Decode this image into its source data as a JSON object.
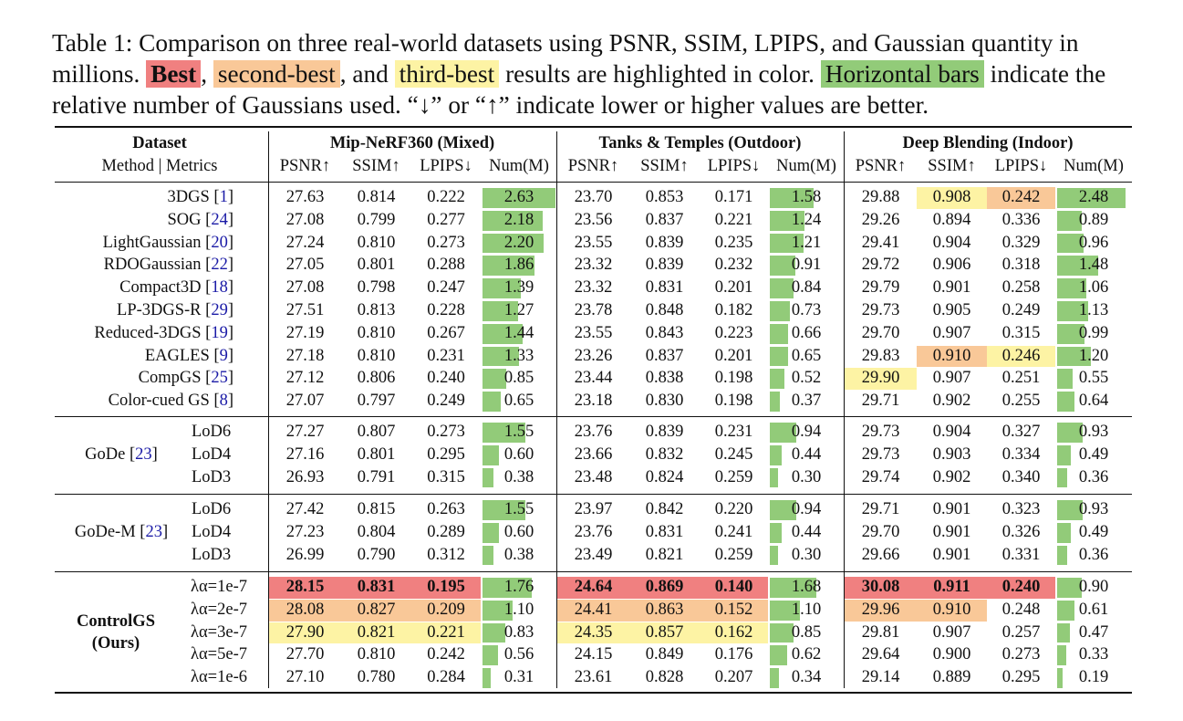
{
  "caption": {
    "text1": "Table 1: Comparison on three real-world datasets using PSNR, SSIM, LPIPS, and Gaussian quantity in millions.",
    "best": "Best",
    "comma1": ",",
    "second": "second-best",
    "and": ", and",
    "third": "third-best",
    "text2": "results are highlighted in color.",
    "bars": "Horizontal bars",
    "text3": "indicate the relative number of Gaussians used. “↓” or “↑” indicate lower or higher values are better."
  },
  "header": {
    "dataset_label": "Dataset",
    "method_label": "Method | Metrics",
    "datasets": [
      "Mip-NeRF360 (Mixed)",
      "Tanks & Temples (Outdoor)",
      "Deep Blending (Indoor)"
    ],
    "metrics": [
      "PSNR↑",
      "SSIM↑",
      "LPIPS↓",
      "Num(M)"
    ]
  },
  "colors": {
    "best": "#f08080",
    "second": "#f9c898",
    "third": "#fdf3a4",
    "bar": "#92cb79"
  },
  "bar_max": 2.63,
  "groups": [
    {
      "label": "",
      "rows": [
        {
          "method": "3DGS",
          "cite": "1",
          "vals": [
            "27.63",
            "0.814",
            "0.222",
            "2.63",
            "23.70",
            "0.853",
            "0.171",
            "1.58",
            "29.88",
            "0.908",
            "0.242",
            "2.48"
          ],
          "hl": {
            "9": "third",
            "10": "second"
          }
        },
        {
          "method": "SOG",
          "cite": "24",
          "vals": [
            "27.08",
            "0.799",
            "0.277",
            "2.18",
            "23.56",
            "0.837",
            "0.221",
            "1.24",
            "29.26",
            "0.894",
            "0.336",
            "0.89"
          ],
          "hl": {}
        },
        {
          "method": "LightGaussian",
          "cite": "20",
          "vals": [
            "27.24",
            "0.810",
            "0.273",
            "2.20",
            "23.55",
            "0.839",
            "0.235",
            "1.21",
            "29.41",
            "0.904",
            "0.329",
            "0.96"
          ],
          "hl": {}
        },
        {
          "method": "RDOGaussian",
          "cite": "22",
          "vals": [
            "27.05",
            "0.801",
            "0.288",
            "1.86",
            "23.32",
            "0.839",
            "0.232",
            "0.91",
            "29.72",
            "0.906",
            "0.318",
            "1.48"
          ],
          "hl": {}
        },
        {
          "method": "Compact3D",
          "cite": "18",
          "vals": [
            "27.08",
            "0.798",
            "0.247",
            "1.39",
            "23.32",
            "0.831",
            "0.201",
            "0.84",
            "29.79",
            "0.901",
            "0.258",
            "1.06"
          ],
          "hl": {}
        },
        {
          "method": "LP-3DGS-R",
          "cite": "29",
          "vals": [
            "27.51",
            "0.813",
            "0.228",
            "1.27",
            "23.78",
            "0.848",
            "0.182",
            "0.73",
            "29.73",
            "0.905",
            "0.249",
            "1.13"
          ],
          "hl": {}
        },
        {
          "method": "Reduced-3DGS",
          "cite": "19",
          "vals": [
            "27.19",
            "0.810",
            "0.267",
            "1.44",
            "23.55",
            "0.843",
            "0.223",
            "0.66",
            "29.70",
            "0.907",
            "0.315",
            "0.99"
          ],
          "hl": {}
        },
        {
          "method": "EAGLES",
          "cite": "9",
          "vals": [
            "27.18",
            "0.810",
            "0.231",
            "1.33",
            "23.26",
            "0.837",
            "0.201",
            "0.65",
            "29.83",
            "0.910",
            "0.246",
            "1.20"
          ],
          "hl": {
            "9": "second",
            "10": "third"
          }
        },
        {
          "method": "CompGS",
          "cite": "25",
          "vals": [
            "27.12",
            "0.806",
            "0.240",
            "0.85",
            "23.44",
            "0.838",
            "0.198",
            "0.52",
            "29.90",
            "0.907",
            "0.251",
            "0.55"
          ],
          "hl": {
            "8": "third"
          }
        },
        {
          "method": "Color-cued GS",
          "cite": "8",
          "vals": [
            "27.07",
            "0.797",
            "0.249",
            "0.65",
            "23.18",
            "0.830",
            "0.198",
            "0.37",
            "29.71",
            "0.902",
            "0.255",
            "0.64"
          ],
          "hl": {}
        }
      ]
    },
    {
      "label": "GoDe",
      "cite": "23",
      "rows": [
        {
          "method": "LoD6",
          "vals": [
            "27.27",
            "0.807",
            "0.273",
            "1.55",
            "23.76",
            "0.839",
            "0.231",
            "0.94",
            "29.73",
            "0.904",
            "0.327",
            "0.93"
          ],
          "hl": {}
        },
        {
          "method": "LoD4",
          "vals": [
            "27.16",
            "0.801",
            "0.295",
            "0.60",
            "23.66",
            "0.832",
            "0.245",
            "0.44",
            "29.73",
            "0.903",
            "0.334",
            "0.49"
          ],
          "hl": {}
        },
        {
          "method": "LoD3",
          "vals": [
            "26.93",
            "0.791",
            "0.315",
            "0.38",
            "23.48",
            "0.824",
            "0.259",
            "0.30",
            "29.74",
            "0.902",
            "0.340",
            "0.36"
          ],
          "hl": {}
        }
      ]
    },
    {
      "label": "GoDe-M",
      "cite": "23",
      "rows": [
        {
          "method": "LoD6",
          "vals": [
            "27.42",
            "0.815",
            "0.263",
            "1.55",
            "23.97",
            "0.842",
            "0.220",
            "0.94",
            "29.71",
            "0.901",
            "0.323",
            "0.93"
          ],
          "hl": {}
        },
        {
          "method": "LoD4",
          "vals": [
            "27.23",
            "0.804",
            "0.289",
            "0.60",
            "23.76",
            "0.831",
            "0.241",
            "0.44",
            "29.70",
            "0.901",
            "0.326",
            "0.49"
          ],
          "hl": {}
        },
        {
          "method": "LoD3",
          "vals": [
            "26.99",
            "0.790",
            "0.312",
            "0.38",
            "23.49",
            "0.821",
            "0.259",
            "0.30",
            "29.66",
            "0.901",
            "0.331",
            "0.36"
          ],
          "hl": {}
        }
      ]
    },
    {
      "label": "ControlGS",
      "label2": "(Ours)",
      "rows": [
        {
          "method": "λα=1e-7",
          "vals": [
            "28.15",
            "0.831",
            "0.195",
            "1.76",
            "24.64",
            "0.869",
            "0.140",
            "1.68",
            "30.08",
            "0.911",
            "0.240",
            "0.90"
          ],
          "hl": {
            "0": "best",
            "1": "best",
            "2": "best",
            "4": "best",
            "5": "best",
            "6": "best",
            "8": "best",
            "9": "best",
            "10": "best"
          }
        },
        {
          "method": "λα=2e-7",
          "vals": [
            "28.08",
            "0.827",
            "0.209",
            "1.10",
            "24.41",
            "0.863",
            "0.152",
            "1.10",
            "29.96",
            "0.910",
            "0.248",
            "0.61"
          ],
          "hl": {
            "0": "second",
            "1": "second",
            "2": "second",
            "4": "second",
            "5": "second",
            "6": "second",
            "8": "second",
            "9": "second"
          }
        },
        {
          "method": "λα=3e-7",
          "vals": [
            "27.90",
            "0.821",
            "0.221",
            "0.83",
            "24.35",
            "0.857",
            "0.162",
            "0.85",
            "29.81",
            "0.907",
            "0.257",
            "0.47"
          ],
          "hl": {
            "0": "third",
            "1": "third",
            "2": "third",
            "4": "third",
            "5": "third",
            "6": "third"
          }
        },
        {
          "method": "λα=5e-7",
          "vals": [
            "27.70",
            "0.810",
            "0.242",
            "0.56",
            "24.15",
            "0.849",
            "0.176",
            "0.62",
            "29.64",
            "0.900",
            "0.273",
            "0.33"
          ],
          "hl": {}
        },
        {
          "method": "λα=1e-6",
          "vals": [
            "27.10",
            "0.780",
            "0.284",
            "0.31",
            "23.61",
            "0.828",
            "0.207",
            "0.34",
            "29.14",
            "0.889",
            "0.295",
            "0.19"
          ],
          "hl": {}
        }
      ]
    }
  ]
}
